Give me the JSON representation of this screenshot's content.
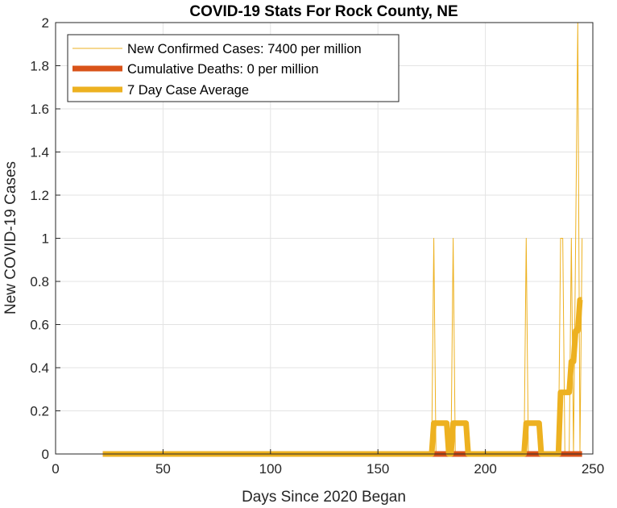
{
  "chart_data": {
    "type": "line",
    "title": "COVID-19 Stats For Rock County, NE",
    "xlabel": "Days Since 2020 Began",
    "ylabel": "New COVID-19 Cases",
    "xlim": [
      0,
      250
    ],
    "ylim": [
      0,
      2
    ],
    "xticks": [
      0,
      50,
      100,
      150,
      200,
      250
    ],
    "yticks": [
      0,
      0.2,
      0.4,
      0.6,
      0.8,
      1,
      1.2,
      1.4,
      1.6,
      1.8,
      2
    ],
    "grid": true,
    "legend_position": "top-left",
    "series": [
      {
        "name": "New Confirmed Cases: 7400 per million",
        "color": "#edb120",
        "style": "thin",
        "x": [
          22,
          175,
          176,
          177,
          184,
          185,
          186,
          218,
          219,
          220,
          234,
          235,
          236,
          237,
          239,
          240,
          241,
          242,
          243,
          244,
          245
        ],
        "y": [
          0,
          0,
          1,
          0,
          0,
          1,
          0,
          0,
          1,
          0,
          0,
          1,
          1,
          0,
          0,
          1,
          0,
          1,
          2,
          0,
          1
        ]
      },
      {
        "name": "Cumulative Deaths: 0 per million",
        "color": "#d95319",
        "style": "thick",
        "x": [
          22,
          245
        ],
        "y": [
          0,
          0
        ]
      },
      {
        "name": "7 Day Case Average",
        "color": "#edb120",
        "style": "thick",
        "x": [
          22,
          175,
          176,
          182,
          183,
          184,
          185,
          191,
          192,
          218,
          219,
          225,
          226,
          234,
          235,
          236,
          239,
          240,
          241,
          242,
          243,
          244,
          245
        ],
        "y": [
          0,
          0,
          0.1429,
          0.1429,
          0,
          0,
          0.1429,
          0.1429,
          0,
          0,
          0.1429,
          0.1429,
          0,
          0,
          0.2857,
          0.2857,
          0.2857,
          0.4286,
          0.4286,
          0.5714,
          0.5714,
          0.7143,
          0.7143
        ]
      }
    ]
  }
}
